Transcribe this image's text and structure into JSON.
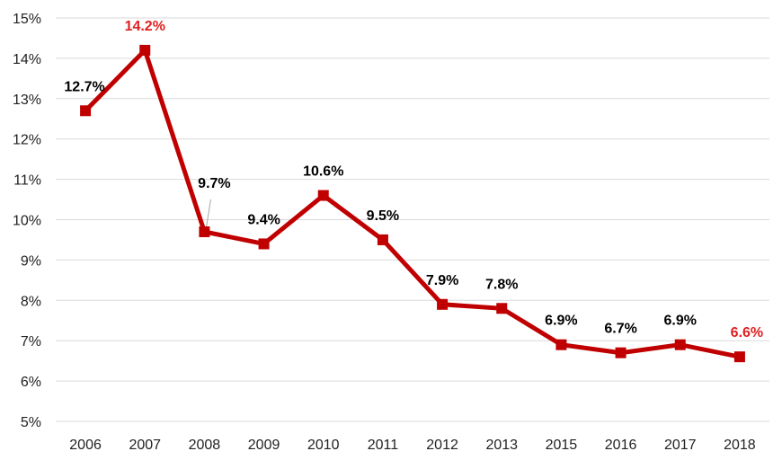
{
  "chart_data": {
    "type": "line",
    "title": "",
    "xlabel": "",
    "ylabel": "",
    "categories": [
      "2006",
      "2007",
      "2008",
      "2009",
      "2010",
      "2011",
      "2012",
      "2013",
      "2015",
      "2016",
      "2017",
      "2018"
    ],
    "series": [
      {
        "values": [
          12.7,
          14.2,
          9.7,
          9.4,
          10.6,
          9.5,
          7.9,
          7.8,
          6.9,
          6.7,
          6.9,
          6.6
        ],
        "data_labels": [
          "12.7%",
          "14.2%",
          "9.7%",
          "9.4%",
          "10.6%",
          "9.5%",
          "7.9%",
          "7.8%",
          "6.9%",
          "6.7%",
          "6.9%",
          "6.6%"
        ],
        "color": "#c00000"
      }
    ],
    "highlighted_labels": [
      "2007",
      "2018"
    ],
    "highlight_color": "#e02020",
    "label_color": "#000000",
    "ylim": [
      5,
      15
    ],
    "yticks": [
      5,
      6,
      7,
      8,
      9,
      10,
      11,
      12,
      13,
      14,
      15
    ],
    "ytick_labels": [
      "5%",
      "6%",
      "7%",
      "8%",
      "9%",
      "10%",
      "11%",
      "12%",
      "13%",
      "14%",
      "15%"
    ],
    "grid": "horizontal",
    "legend": "none",
    "gridline_color": "#d9d9d9"
  }
}
